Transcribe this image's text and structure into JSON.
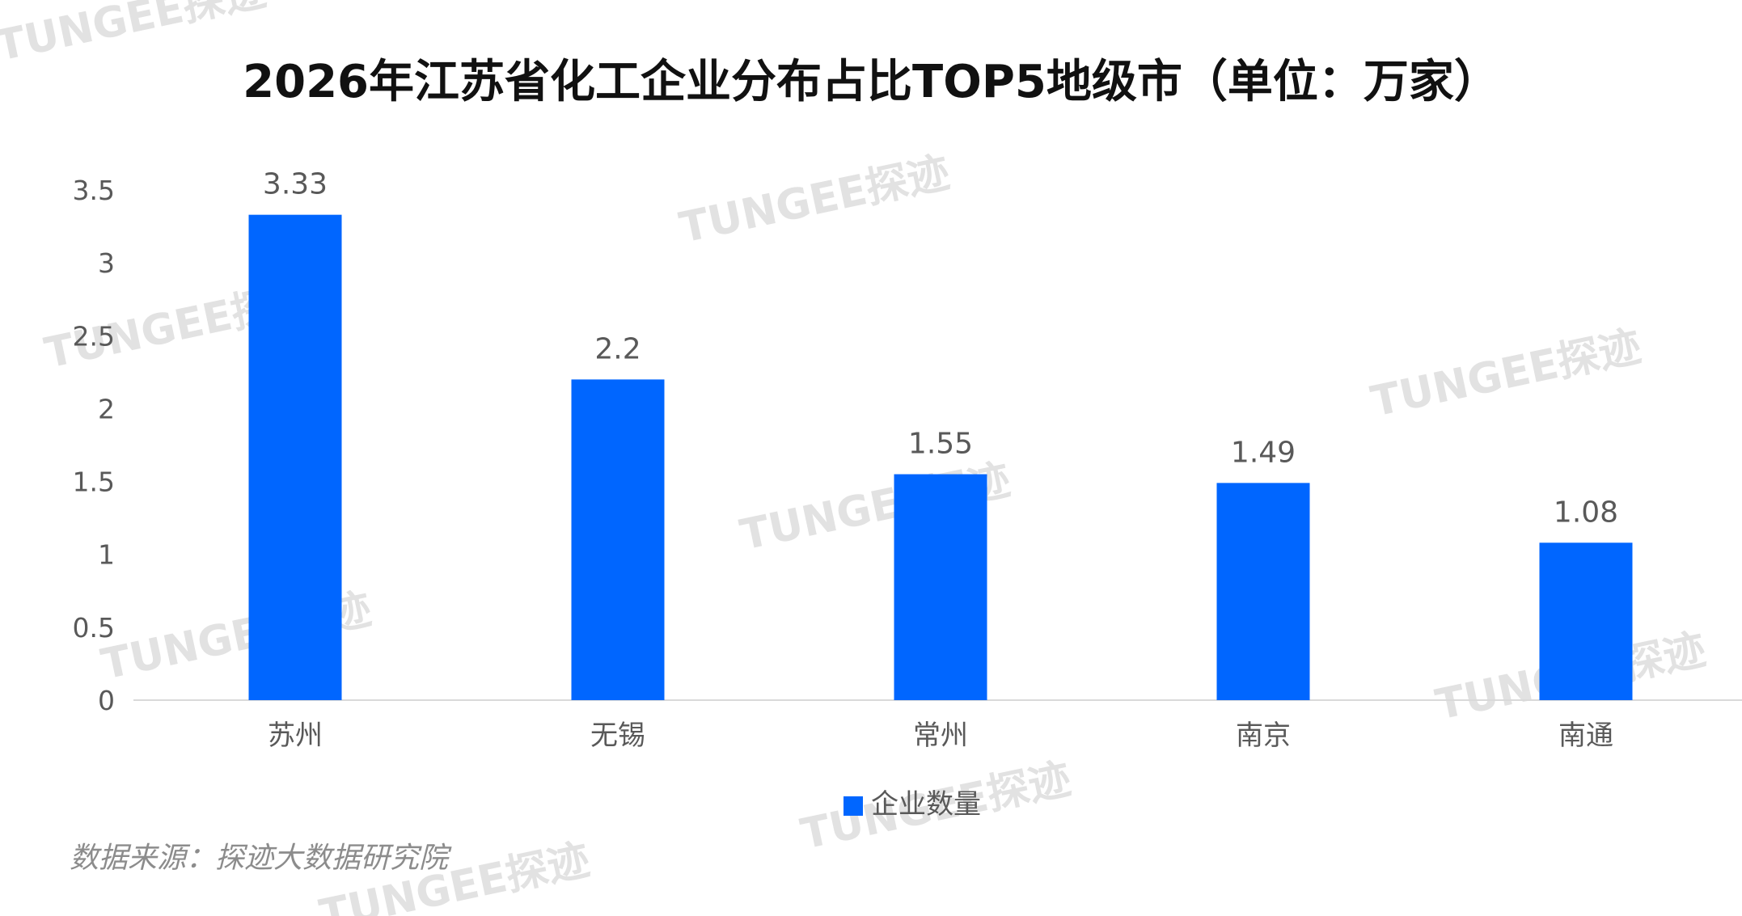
{
  "chart_data": {
    "type": "bar",
    "title": "2026年江苏省化工企业分布占比TOP5地级市（单位：万家）",
    "categories": [
      "苏州",
      "无锡",
      "常州",
      "南京",
      "南通"
    ],
    "series": [
      {
        "name": "企业数量",
        "values": [
          3.33,
          2.2,
          1.55,
          1.49,
          1.08
        ]
      }
    ],
    "data_labels": [
      "3.33",
      "2.2",
      "1.55",
      "1.49",
      "1.08"
    ],
    "y_ticks": [
      "0",
      "0.5",
      "1",
      "1.5",
      "2",
      "2.5",
      "3",
      "3.5"
    ],
    "ylim": [
      0,
      3.5
    ],
    "grid": false,
    "legend_position": "bottom",
    "bar_color": "#0066FF",
    "source": "数据来源：探迹大数据研究院"
  },
  "watermark": {
    "text": "TUNGEE探迹"
  },
  "colors": {
    "title": "#111111",
    "axis_text": "#595959",
    "source_text": "#8c8c8c",
    "axis_line": "#d9d9d9",
    "watermark": "#d8d8d8"
  }
}
